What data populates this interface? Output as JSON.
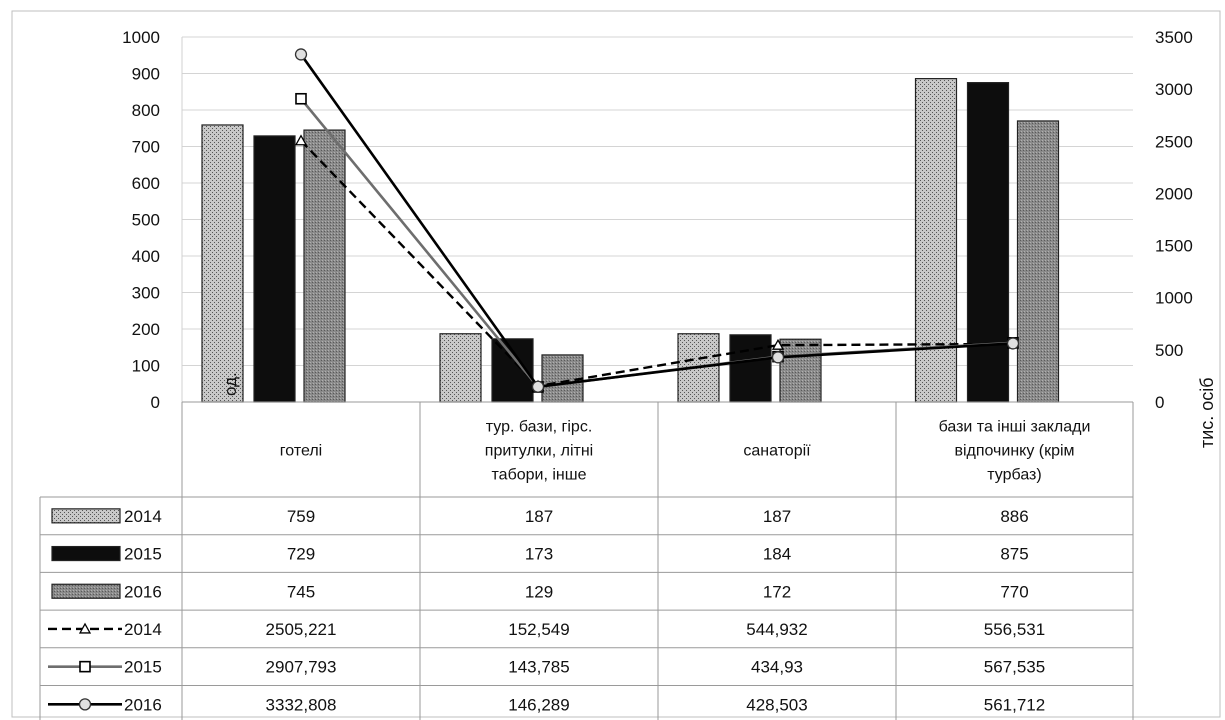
{
  "chart_data": {
    "type": "bar",
    "categories": [
      [
        "готелі"
      ],
      [
        "тур. бази, гірс.",
        "притулки, літні",
        "табори, інше"
      ],
      [
        "санаторії"
      ],
      [
        "бази та інші заклади",
        "відпочинку (крім",
        "турбаз)"
      ]
    ],
    "ylabel": "од.",
    "y2label": "тис. осіб",
    "ylim": [
      0,
      1000
    ],
    "y2lim": [
      0,
      3500
    ],
    "yticks": [
      0,
      100,
      200,
      300,
      400,
      500,
      600,
      700,
      800,
      900,
      1000
    ],
    "y2ticks": [
      0,
      500,
      1000,
      1500,
      2000,
      2500,
      3000,
      3500
    ],
    "grid": true,
    "legend_placement": "data table (left column)",
    "series": [
      {
        "name": "2014",
        "kind": "bar",
        "axis": "left",
        "pattern": "dots",
        "values": [
          759,
          187,
          187,
          886
        ],
        "labels": [
          "759",
          "187",
          "187",
          "886"
        ]
      },
      {
        "name": "2015",
        "kind": "bar",
        "axis": "left",
        "pattern": "solid-black",
        "values": [
          729,
          173,
          184,
          875
        ],
        "labels": [
          "729",
          "173",
          "184",
          "875"
        ]
      },
      {
        "name": "2016",
        "kind": "bar",
        "axis": "left",
        "pattern": "dense-grey",
        "values": [
          745,
          129,
          172,
          770
        ],
        "labels": [
          "745",
          "129",
          "172",
          "770"
        ]
      },
      {
        "name": "2014",
        "kind": "line",
        "axis": "right",
        "dash": "dashed",
        "marker": "triangle",
        "values": [
          2505.221,
          152.549,
          544.932,
          556.531
        ],
        "labels": [
          "2505,221",
          "152,549",
          "544,932",
          "556,531"
        ]
      },
      {
        "name": "2015",
        "kind": "line",
        "axis": "right",
        "dash": "solid-grey",
        "marker": "square",
        "values": [
          2907.793,
          143.785,
          434.93,
          567.535
        ],
        "labels": [
          "2907,793",
          "143,785",
          "434,93",
          "567,535"
        ]
      },
      {
        "name": "2016",
        "kind": "line",
        "axis": "right",
        "dash": "solid-black",
        "marker": "circle",
        "values": [
          3332.808,
          146.289,
          428.503,
          561.712
        ],
        "labels": [
          "3332,808",
          "146,289",
          "428,503",
          "561,712"
        ]
      }
    ],
    "colors": {
      "bar2014": "#b8b8b8",
      "bar2015": "#0d0d0d",
      "bar2016": "#8c8c8c",
      "line2014": "#000000",
      "line2015": "#6e6e6e",
      "line2016": "#000000",
      "grid": "#d4d4d4"
    }
  }
}
